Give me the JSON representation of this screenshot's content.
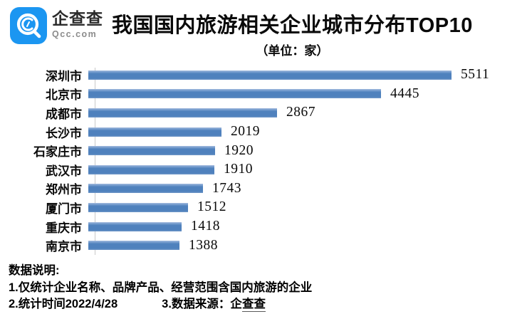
{
  "brand": {
    "logo_icon": "qcc-magnifier-icon",
    "name": "企查查",
    "domain": "Qcc.com"
  },
  "header": {
    "title": "我国国内旅游相关企业城市分布TOP10",
    "subtitle": "（单位：家）"
  },
  "chart_data": {
    "type": "bar",
    "orientation": "horizontal",
    "title": "我国国内旅游相关企业城市分布TOP10",
    "unit_label": "（单位：家）",
    "categories": [
      "深圳市",
      "北京市",
      "成都市",
      "长沙市",
      "石家庄市",
      "武汉市",
      "郑州市",
      "厦门市",
      "重庆市",
      "南京市"
    ],
    "values": [
      5511,
      4445,
      2867,
      2019,
      1920,
      1910,
      1743,
      1512,
      1418,
      1388
    ],
    "xlabel": "",
    "ylabel": "",
    "xlim": [
      0,
      6000
    ],
    "grid": false,
    "legend": false,
    "value_labels_shown": true,
    "bar_color": "#4f81bd",
    "axis_color": "#c9c9c9"
  },
  "footer": {
    "notes_title": "数据说明:",
    "note1": "1.仅统计企业名称、品牌产品、经营范围含国内旅游的企业",
    "note2": "2.统计时间2022/4/28",
    "note3_prefix": "3.数据来源：企",
    "note3_source": "查查"
  }
}
